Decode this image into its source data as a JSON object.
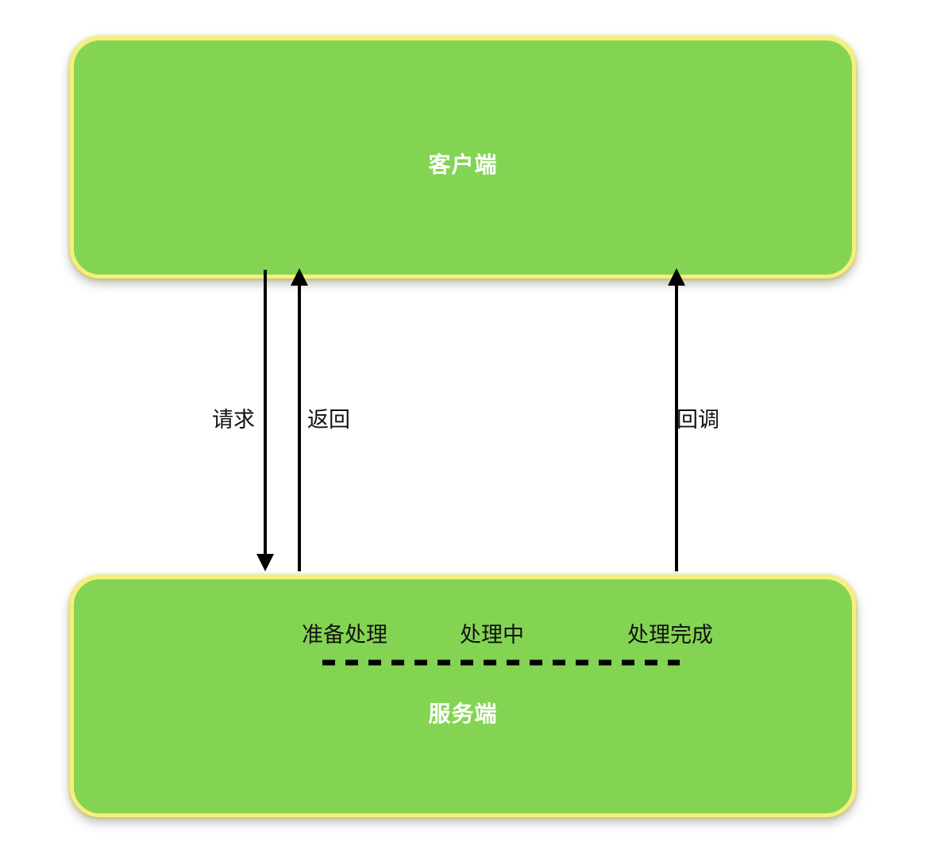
{
  "client": {
    "title": "客户端"
  },
  "server": {
    "title": "服务端",
    "stages": [
      "准备处理",
      "处理中",
      "处理完成"
    ]
  },
  "arrows": {
    "request": "请求",
    "return": "返回",
    "callback": "回调"
  },
  "colors": {
    "box_fill": "#84d454",
    "box_border": "#f5f07a",
    "box_text": "#ffffff",
    "arrow": "#000000"
  }
}
